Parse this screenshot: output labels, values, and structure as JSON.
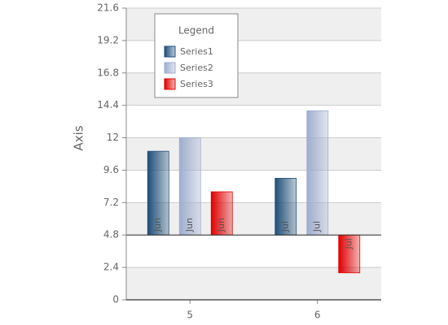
{
  "chart_data": {
    "type": "bar",
    "y_axis_title": "Axis",
    "categories": [
      "5",
      "6"
    ],
    "origin": 4.8,
    "ylim": [
      0,
      21.6
    ],
    "yticks": [
      0,
      2.4,
      4.8,
      7.2,
      9.6,
      12,
      14.4,
      16.8,
      19.2,
      21.6
    ],
    "grid": true,
    "legend_title": "Legend",
    "legend_position": "top-left",
    "series": [
      {
        "name": "Series1",
        "color": "#1f4e79",
        "values": [
          11,
          9
        ],
        "point_labels": [
          "Jun",
          "Jul"
        ]
      },
      {
        "name": "Series2",
        "color": "#9fadcf",
        "values": [
          12,
          14
        ],
        "point_labels": [
          "Jun",
          "Jul"
        ]
      },
      {
        "name": "Series3",
        "color": "#e00000",
        "values": [
          8,
          2
        ],
        "point_labels": [
          "Jun",
          "Jul"
        ]
      }
    ]
  }
}
